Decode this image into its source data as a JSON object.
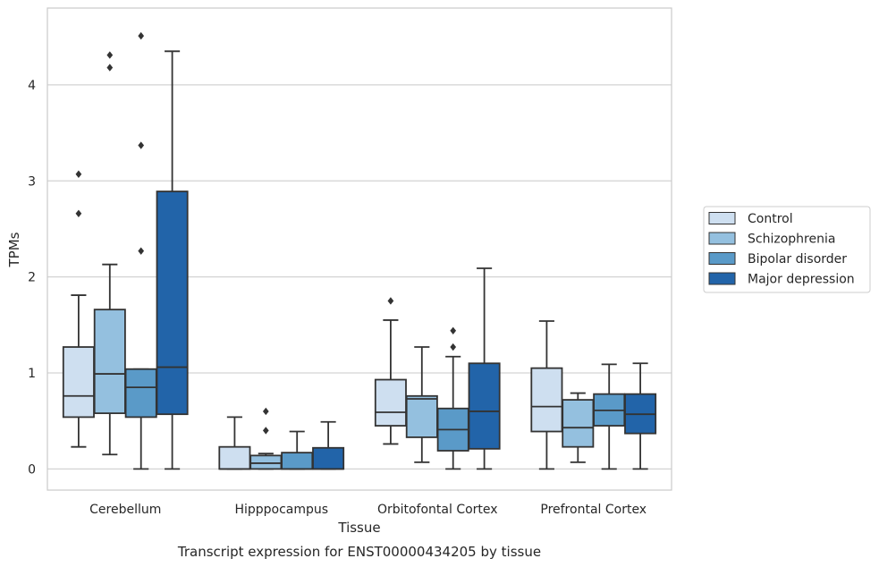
{
  "chart_data": {
    "type": "box",
    "title": "",
    "caption": "Transcript expression for ENST00000434205 by tissue",
    "xlabel": "Tissue",
    "ylabel": "TPMs",
    "ylim": [
      -0.22,
      4.8
    ],
    "yticks": [
      0,
      1,
      2,
      3,
      4
    ],
    "grid": "horizontal",
    "legend_position": "right",
    "categories": [
      "Cerebellum",
      "Hipppocampus",
      "Orbitofontal Cortex",
      "Prefrontal Cortex"
    ],
    "series": [
      {
        "name": "Control",
        "color": "#cedff0",
        "boxes": [
          {
            "q1": 0.54,
            "median": 0.76,
            "q3": 1.27,
            "whislo": 0.23,
            "whishi": 1.81,
            "fliers": [
              2.66,
              3.07
            ]
          },
          {
            "q1": 0.0,
            "median": 0.0,
            "q3": 0.23,
            "whislo": 0.0,
            "whishi": 0.54,
            "fliers": []
          },
          {
            "q1": 0.45,
            "median": 0.59,
            "q3": 0.93,
            "whislo": 0.26,
            "whishi": 1.55,
            "fliers": [
              1.75
            ]
          },
          {
            "q1": 0.39,
            "median": 0.65,
            "q3": 1.05,
            "whislo": 0.0,
            "whishi": 1.54,
            "fliers": []
          }
        ]
      },
      {
        "name": "Schizophrenia",
        "color": "#94c0df",
        "boxes": [
          {
            "q1": 0.58,
            "median": 0.99,
            "q3": 1.66,
            "whislo": 0.15,
            "whishi": 2.13,
            "fliers": [
              4.18,
              4.31
            ]
          },
          {
            "q1": 0.0,
            "median": 0.06,
            "q3": 0.14,
            "whislo": 0.0,
            "whishi": 0.16,
            "fliers": [
              0.4,
              0.6
            ]
          },
          {
            "q1": 0.33,
            "median": 0.73,
            "q3": 0.76,
            "whislo": 0.07,
            "whishi": 1.27,
            "fliers": []
          },
          {
            "q1": 0.23,
            "median": 0.43,
            "q3": 0.72,
            "whislo": 0.07,
            "whishi": 0.79,
            "fliers": []
          }
        ]
      },
      {
        "name": "Bipolar disorder",
        "color": "#5a9ac8",
        "boxes": [
          {
            "q1": 0.54,
            "median": 0.85,
            "q3": 1.04,
            "whislo": 0.0,
            "whishi": 1.04,
            "fliers": [
              2.27,
              3.37,
              4.51
            ]
          },
          {
            "q1": 0.0,
            "median": 0.0,
            "q3": 0.17,
            "whislo": 0.0,
            "whishi": 0.39,
            "fliers": []
          },
          {
            "q1": 0.19,
            "median": 0.41,
            "q3": 0.63,
            "whislo": 0.0,
            "whishi": 1.17,
            "fliers": [
              1.27,
              1.44
            ]
          },
          {
            "q1": 0.45,
            "median": 0.61,
            "q3": 0.78,
            "whislo": 0.0,
            "whishi": 1.09,
            "fliers": []
          }
        ]
      },
      {
        "name": "Major depression",
        "color": "#2264a9",
        "boxes": [
          {
            "q1": 0.57,
            "median": 1.06,
            "q3": 2.89,
            "whislo": 0.0,
            "whishi": 4.35,
            "fliers": []
          },
          {
            "q1": 0.0,
            "median": 0.0,
            "q3": 0.22,
            "whislo": 0.0,
            "whishi": 0.49,
            "fliers": []
          },
          {
            "q1": 0.21,
            "median": 0.6,
            "q3": 1.1,
            "whislo": 0.0,
            "whishi": 2.09,
            "fliers": []
          },
          {
            "q1": 0.37,
            "median": 0.57,
            "q3": 0.78,
            "whislo": 0.0,
            "whishi": 1.1,
            "fliers": []
          }
        ]
      }
    ]
  }
}
